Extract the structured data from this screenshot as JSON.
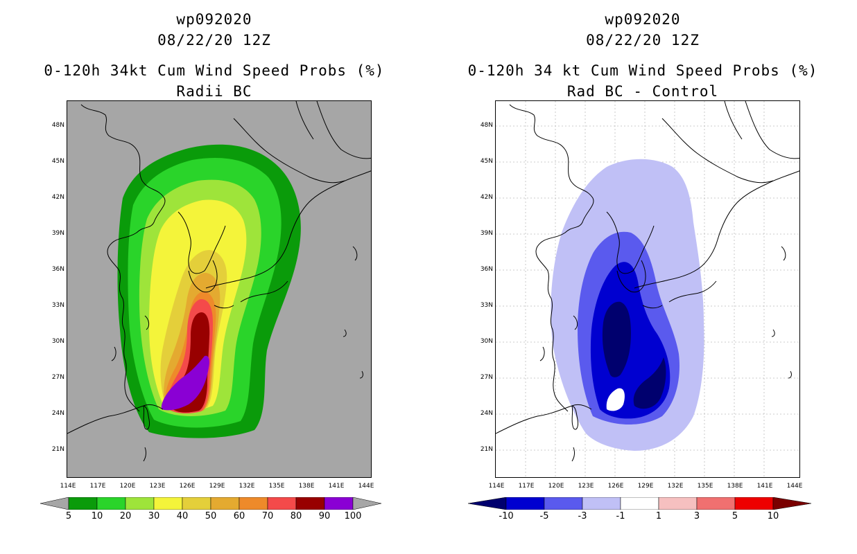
{
  "left_panel": {
    "title_line1": "wp092020",
    "title_line2": "08/22/20 12Z",
    "title_line3": "0-120h 34kt Cum Wind Speed Probs (%)",
    "title_line4": "Radii BC",
    "background_color": "#a6a6a6",
    "colorbar": {
      "labels": [
        "5",
        "10",
        "20",
        "30",
        "40",
        "50",
        "60",
        "70",
        "80",
        "90",
        "100"
      ],
      "colors": [
        "#0a9b0a",
        "#2ad42a",
        "#9ee43a",
        "#f4f43a",
        "#e4cf3a",
        "#e4aa30",
        "#ee8a2a",
        "#f44a4a",
        "#980000",
        "#8a00d4"
      ],
      "end_color": "#a6a6a6"
    }
  },
  "right_panel": {
    "title_line1": "wp092020",
    "title_line2": "08/22/20 12Z",
    "title_line3": "0-120h 34 kt Cum Wind Speed Probs (%)",
    "title_line4": "Rad BC - Control",
    "background_color": "#ffffff",
    "colorbar": {
      "labels": [
        "-10",
        "-5",
        "-3",
        "-1",
        "1",
        "3",
        "5",
        "10"
      ],
      "colors": [
        "#0000d0",
        "#5a5aee",
        "#c0c0f6",
        "#ffffff",
        "#f6c0c0",
        "#f07070",
        "#ee0000"
      ],
      "end_low_color": "#00006e",
      "end_high_color": "#7a0000"
    }
  },
  "axes": {
    "lat_labels": [
      "48N",
      "45N",
      "42N",
      "39N",
      "36N",
      "33N",
      "30N",
      "27N",
      "24N",
      "21N"
    ],
    "lon_labels": [
      "114E",
      "117E",
      "120E",
      "123E",
      "126E",
      "129E",
      "132E",
      "135E",
      "138E",
      "141E",
      "144E"
    ]
  }
}
